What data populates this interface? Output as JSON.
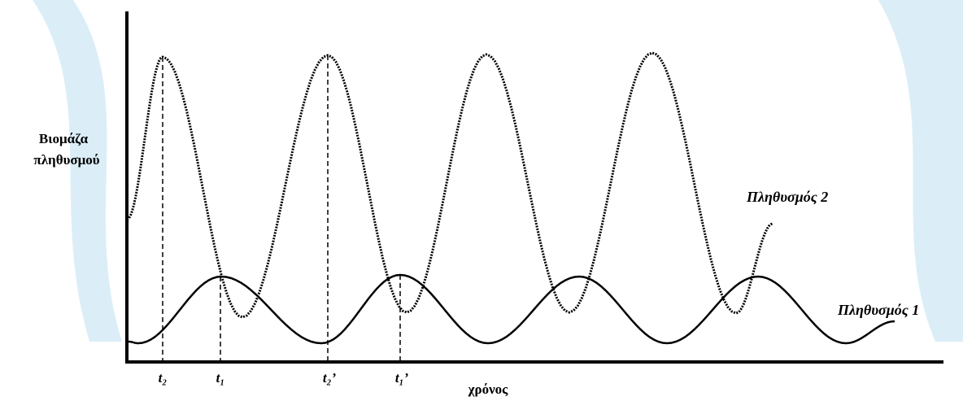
{
  "y_axis_label": {
    "line1": "Βιομάζα",
    "line2": "πληθυσμού"
  },
  "x_axis_label": "χρόνος",
  "curves": [
    {
      "label": "Πληθυσμός 2"
    },
    {
      "label": "Πληθυσμός 1"
    }
  ],
  "time_markers": [
    "t₂",
    "t₁",
    "t₂’",
    "t₁’"
  ]
}
